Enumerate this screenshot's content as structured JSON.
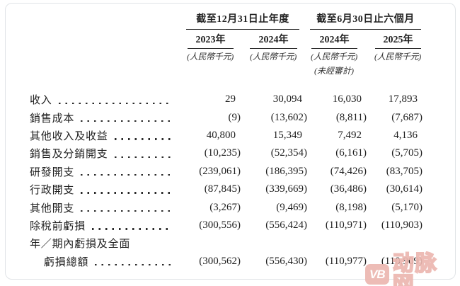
{
  "page": {
    "background": "#ffffff",
    "card_border_color": "#e1e4e7",
    "text_color": "#1f1f1f"
  },
  "table": {
    "col_groups": [
      {
        "label": "截至12月31日止年度"
      },
      {
        "label": "截至6月30日止六個月"
      }
    ],
    "columns": [
      {
        "year": "2023年",
        "unit": "(人民幣千元)",
        "note": ""
      },
      {
        "year": "2024年",
        "unit": "(人民幣千元)",
        "note": ""
      },
      {
        "year": "2024年",
        "unit": "(人民幣千元)",
        "note": "(未經審計)"
      },
      {
        "year": "2025年",
        "unit": "(人民幣千元)",
        "note": ""
      }
    ],
    "rows": [
      {
        "label": "收入",
        "indent": false,
        "leader": true,
        "values": [
          "29",
          "30,094",
          "16,030",
          "17,893"
        ]
      },
      {
        "label": "銷售成本",
        "indent": false,
        "leader": true,
        "values": [
          "(9)",
          "(13,602)",
          "(8,811)",
          "(7,687)"
        ]
      },
      {
        "label": "其他收入及收益",
        "indent": false,
        "leader": true,
        "values": [
          "40,800",
          "15,349",
          "7,492",
          "4,136"
        ]
      },
      {
        "label": "銷售及分銷開支",
        "indent": false,
        "leader": true,
        "values": [
          "(10,235)",
          "(52,354)",
          "(6,161)",
          "(5,705)"
        ]
      },
      {
        "label": "研發開支",
        "indent": false,
        "leader": true,
        "values": [
          "(239,061)",
          "(186,395)",
          "(74,426)",
          "(83,705)"
        ]
      },
      {
        "label": "行政開支",
        "indent": false,
        "leader": true,
        "values": [
          "(87,845)",
          "(339,669)",
          "(36,486)",
          "(30,614)"
        ]
      },
      {
        "label": "其他開支",
        "indent": false,
        "leader": true,
        "values": [
          "(3,267)",
          "(9,469)",
          "(8,198)",
          "(5,170)"
        ]
      },
      {
        "label": "除稅前虧損",
        "indent": false,
        "leader": true,
        "values": [
          "(300,556)",
          "(556,424)",
          "(110,971)",
          "(110,903)"
        ]
      },
      {
        "label": "年／期內虧損及全面",
        "indent": false,
        "leader": false,
        "values": []
      },
      {
        "label": "虧損總額",
        "indent": true,
        "leader": true,
        "values": [
          "(300,562)",
          "(556,430)",
          "(110,977)",
          "(110,909)"
        ]
      }
    ]
  },
  "watermark": {
    "badge": "VB",
    "text": "动脉网",
    "color": "#ecb7b0"
  }
}
